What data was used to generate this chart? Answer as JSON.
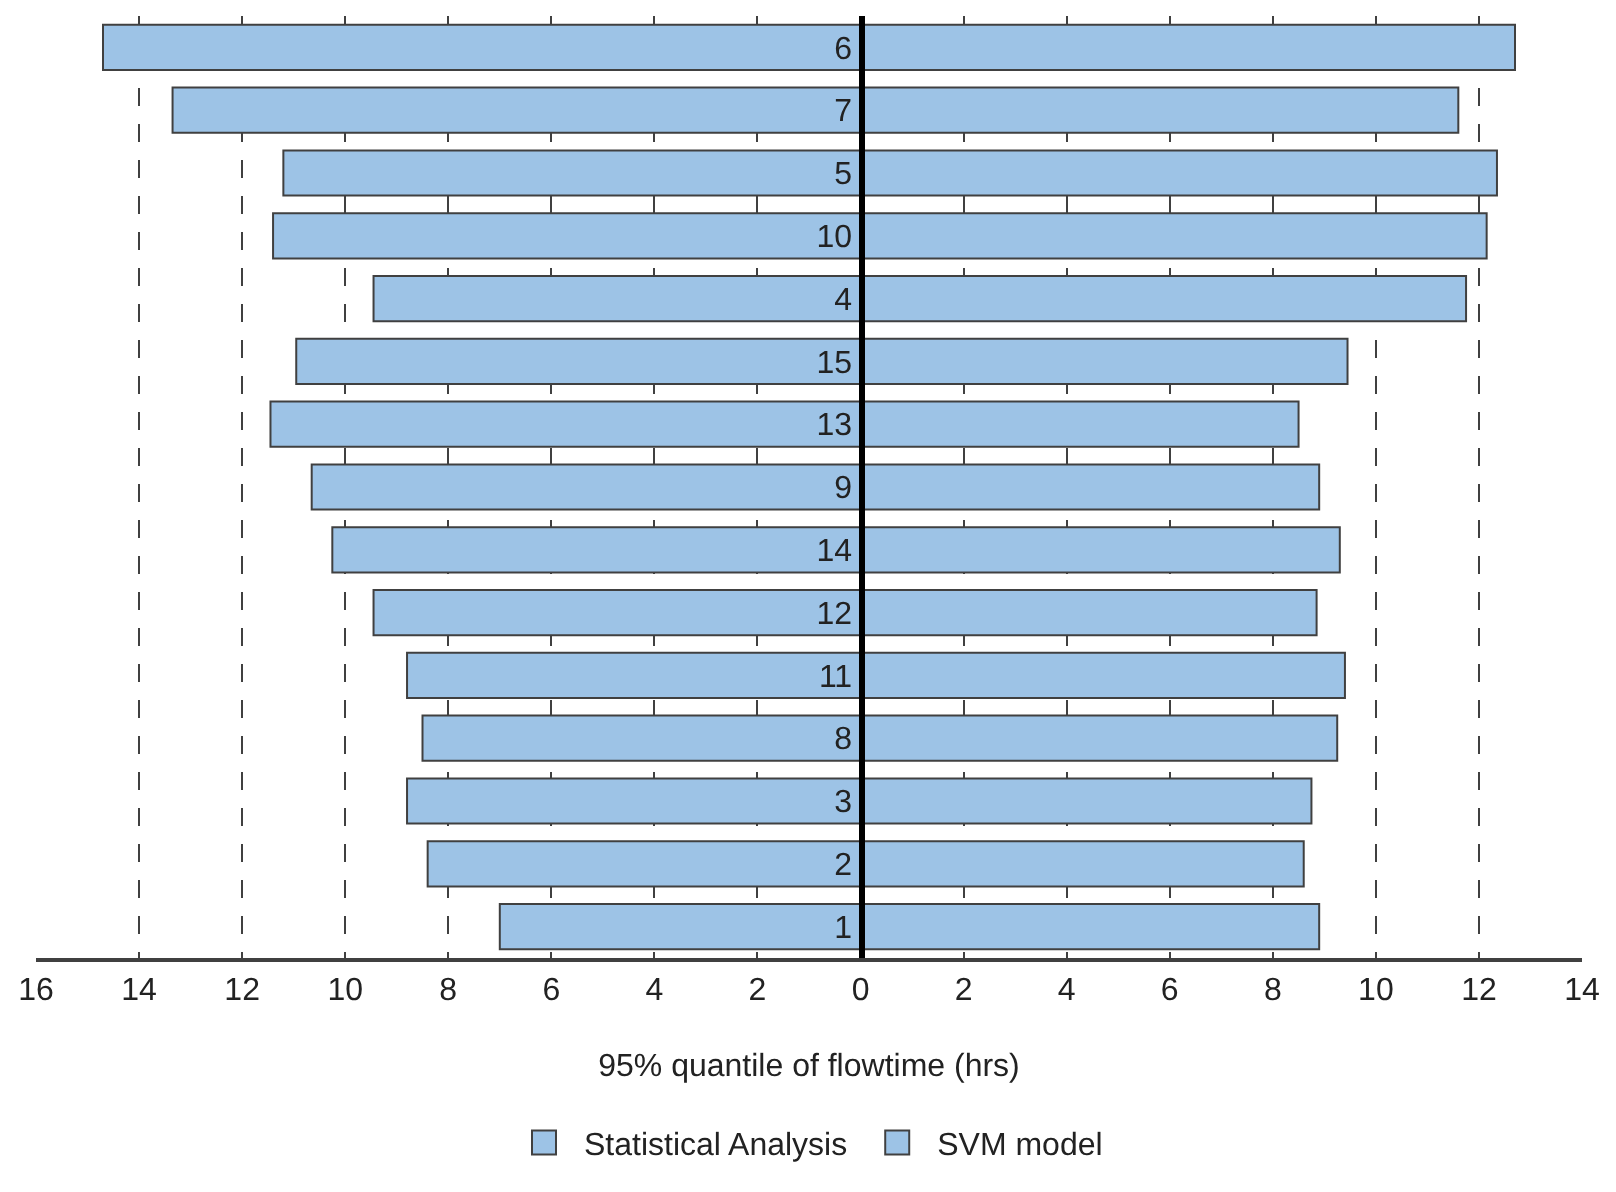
{
  "chart_data": {
    "type": "bar",
    "orientation": "horizontal",
    "xlabel": "95% quantile of flowtime (hrs)",
    "categories": [
      "6",
      "7",
      "5",
      "10",
      "4",
      "15",
      "13",
      "9",
      "14",
      "12",
      "11",
      "8",
      "3",
      "2",
      "1"
    ],
    "series": [
      {
        "name": "Statistical Analysis",
        "color": "#9dc3e6",
        "values": [
          -14.7,
          -13.35,
          -11.2,
          -11.4,
          -9.45,
          -10.95,
          -11.45,
          -10.65,
          -10.25,
          -9.45,
          -8.8,
          -8.5,
          -8.8,
          -8.4,
          -7.0
        ]
      },
      {
        "name": "SVM model",
        "color": "#9dc3e6",
        "values": [
          12.7,
          11.6,
          12.35,
          12.15,
          11.75,
          9.45,
          8.5,
          8.9,
          9.3,
          8.85,
          9.4,
          9.25,
          8.75,
          8.6,
          8.9
        ]
      }
    ],
    "xlim": [
      -16,
      14
    ],
    "xticks": [
      {
        "value": -16,
        "label": "16"
      },
      {
        "value": -14,
        "label": "14"
      },
      {
        "value": -12,
        "label": "12"
      },
      {
        "value": -10,
        "label": "10"
      },
      {
        "value": -8,
        "label": "8"
      },
      {
        "value": -6,
        "label": "6"
      },
      {
        "value": -4,
        "label": "4"
      },
      {
        "value": -2,
        "label": "2"
      },
      0,
      2,
      4,
      6,
      8,
      10,
      12,
      14
    ],
    "grid": "x",
    "legend": "bottom",
    "stacked": true
  }
}
